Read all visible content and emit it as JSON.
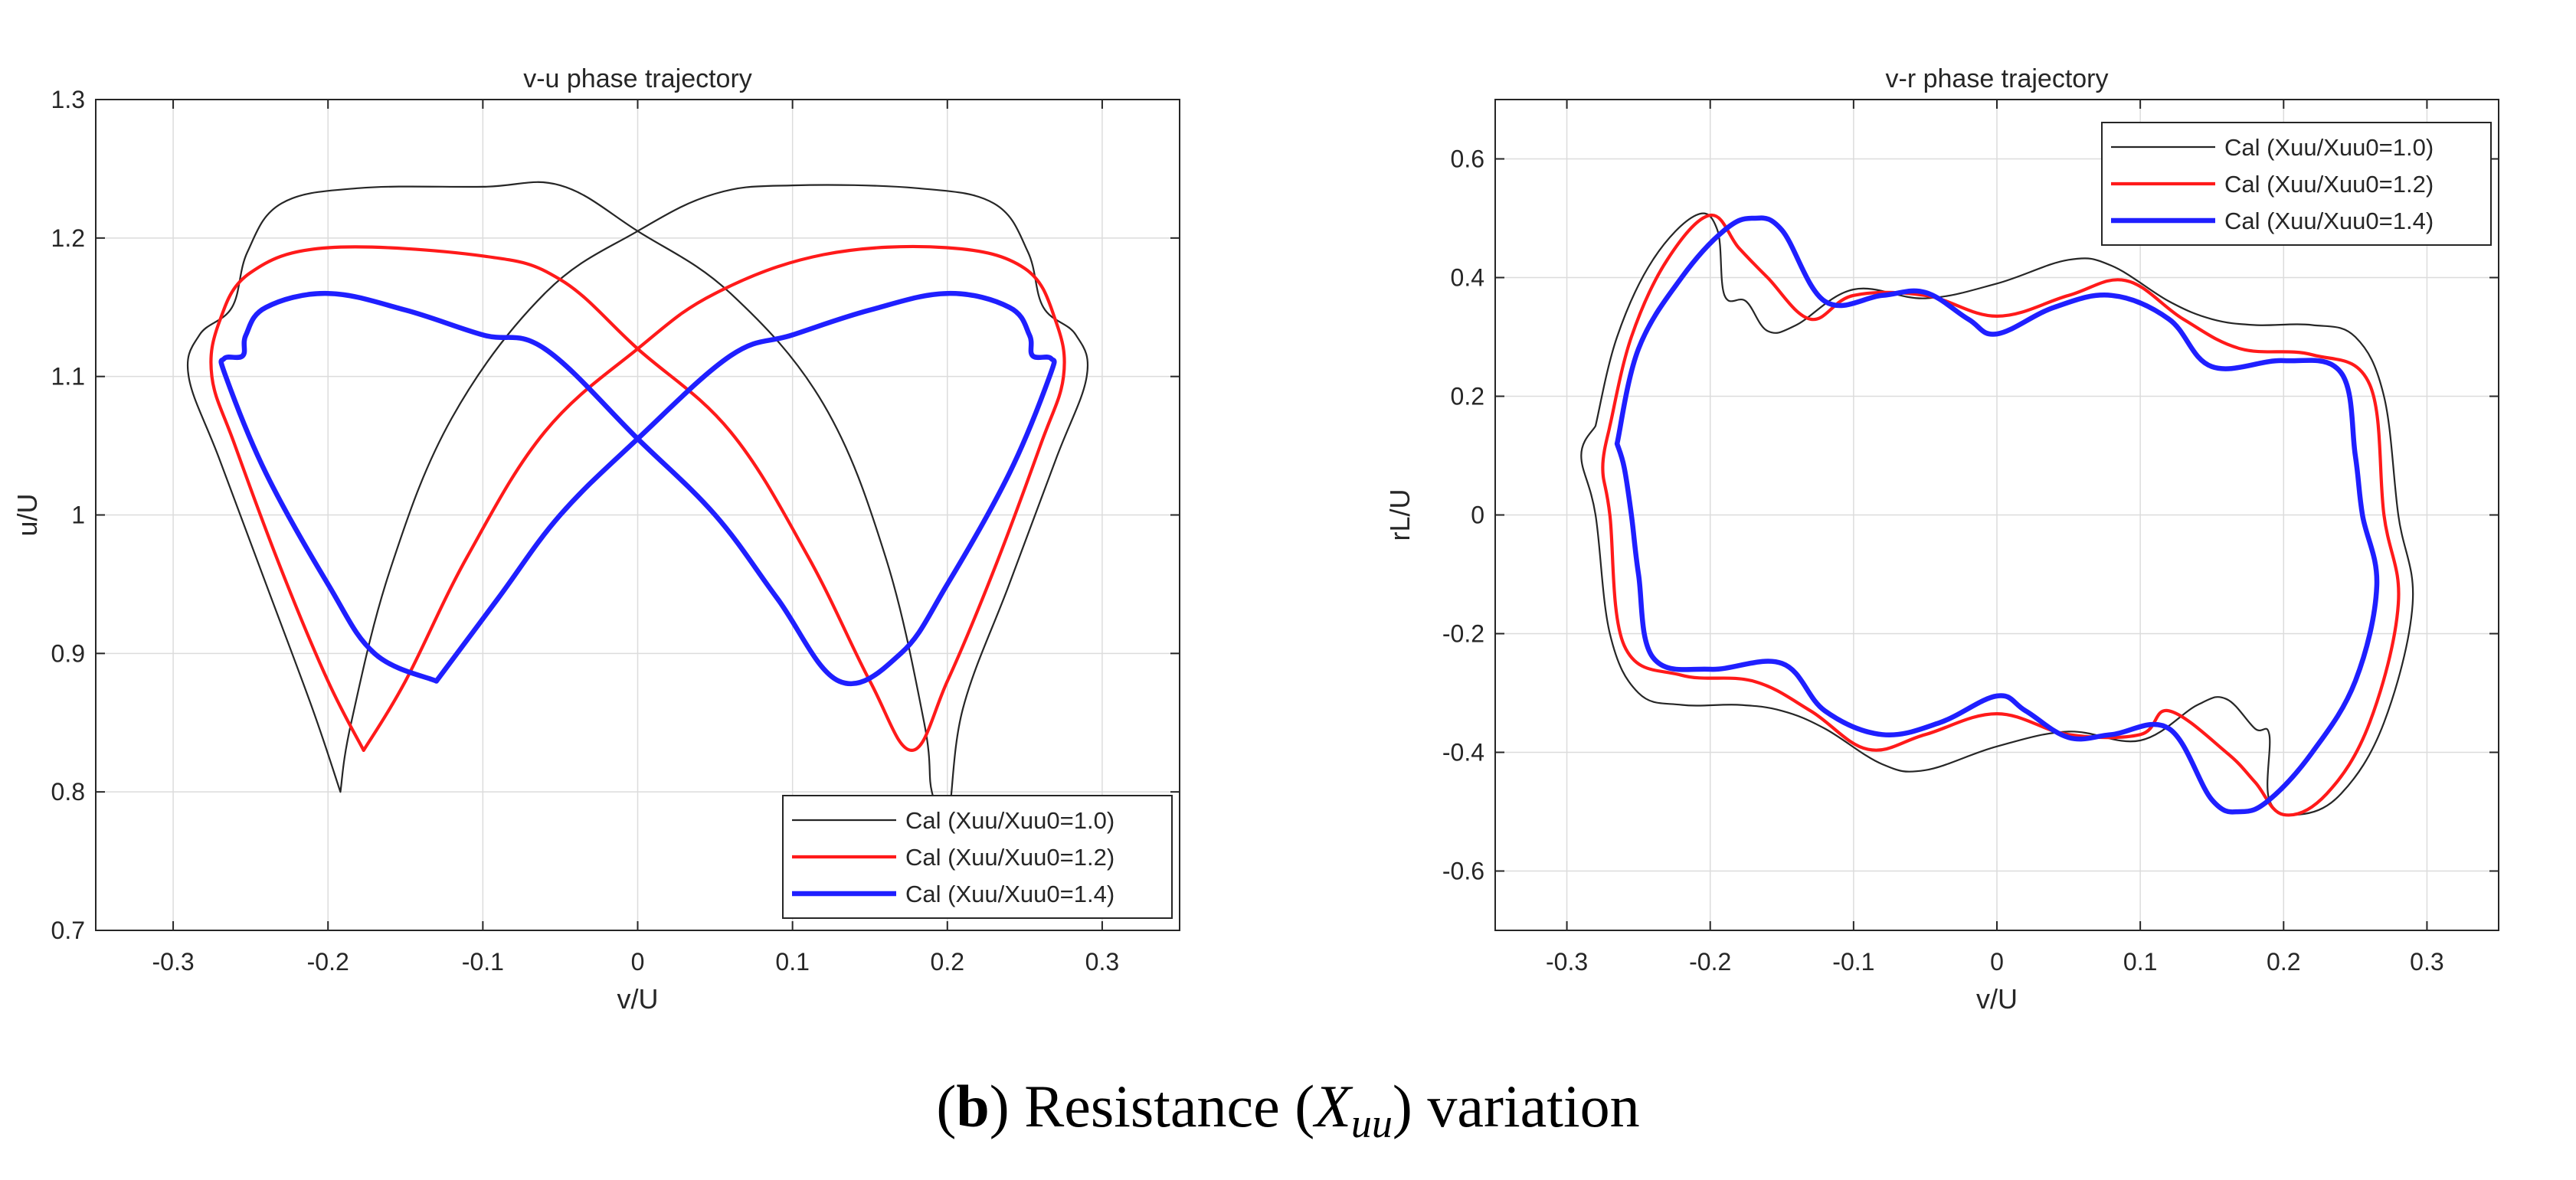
{
  "caption": {
    "label": "b",
    "text": "Resistance (X_uu) variation",
    "pre": " Resistance (",
    "var": "X",
    "sub": "uu",
    "post": ") variation"
  },
  "chart_data": [
    {
      "type": "line",
      "title": "v-u phase trajectory",
      "xlabel": "v/U",
      "ylabel": "u/U",
      "xlim": [
        -0.35,
        0.35
      ],
      "ylim": [
        0.7,
        1.3
      ],
      "xticks": [
        -0.3,
        -0.2,
        -0.1,
        0,
        0.1,
        0.2,
        0.3
      ],
      "xtick_labels": [
        "-0.3",
        "-0.2",
        "-0.1",
        "0",
        "0.1",
        "0.2",
        "0.3"
      ],
      "yticks": [
        0.7,
        0.8,
        0.9,
        1.0,
        1.1,
        1.2,
        1.3
      ],
      "ytick_labels": [
        "0.7",
        "0.8",
        "0.9",
        "1",
        "1.1",
        "1.2",
        "1.3"
      ],
      "grid": true,
      "legend_position": "bottom-right",
      "series": [
        {
          "name": "Cal (Xuu/Xuu0=1.0)",
          "color": "#262626",
          "points": [
            [
              -0.192,
              0.8
            ],
            [
              -0.21,
              0.86
            ],
            [
              -0.24,
              0.95
            ],
            [
              -0.27,
              1.04
            ],
            [
              -0.29,
              1.1
            ],
            [
              -0.283,
              1.13
            ],
            [
              -0.262,
              1.15
            ],
            [
              -0.252,
              1.19
            ],
            [
              -0.23,
              1.225
            ],
            [
              -0.18,
              1.236
            ],
            [
              -0.1,
              1.237
            ],
            [
              -0.05,
              1.238
            ],
            [
              0.0,
              1.205
            ],
            [
              0.06,
              1.16
            ],
            [
              0.12,
              1.08
            ],
            [
              0.16,
              0.97
            ],
            [
              0.185,
              0.85
            ],
            [
              0.19,
              0.8
            ],
            [
              0.2,
              0.78
            ],
            [
              0.21,
              0.86
            ],
            [
              0.24,
              0.95
            ],
            [
              0.27,
              1.04
            ],
            [
              0.29,
              1.1
            ],
            [
              0.283,
              1.13
            ],
            [
              0.262,
              1.15
            ],
            [
              0.252,
              1.19
            ],
            [
              0.23,
              1.225
            ],
            [
              0.18,
              1.236
            ],
            [
              0.1,
              1.238
            ],
            [
              0.05,
              1.232
            ],
            [
              0.0,
              1.205
            ],
            [
              -0.06,
              1.16
            ],
            [
              -0.12,
              1.07
            ],
            [
              -0.16,
              0.96
            ],
            [
              -0.185,
              0.85
            ],
            [
              -0.192,
              0.8
            ]
          ]
        },
        {
          "name": "Cal (Xuu/Xuu0=1.2)",
          "color": "#ff1a1a",
          "points": [
            [
              -0.177,
              0.83
            ],
            [
              -0.2,
              0.88
            ],
            [
              -0.23,
              0.96
            ],
            [
              -0.26,
              1.05
            ],
            [
              -0.275,
              1.1
            ],
            [
              -0.27,
              1.14
            ],
            [
              -0.25,
              1.175
            ],
            [
              -0.2,
              1.193
            ],
            [
              -0.1,
              1.187
            ],
            [
              -0.05,
              1.17
            ],
            [
              0.0,
              1.12
            ],
            [
              0.06,
              1.06
            ],
            [
              0.11,
              0.97
            ],
            [
              0.15,
              0.88
            ],
            [
              0.177,
              0.83
            ],
            [
              0.2,
              0.88
            ],
            [
              0.23,
              0.96
            ],
            [
              0.26,
              1.05
            ],
            [
              0.275,
              1.1
            ],
            [
              0.27,
              1.14
            ],
            [
              0.25,
              1.178
            ],
            [
              0.2,
              1.193
            ],
            [
              0.12,
              1.188
            ],
            [
              0.05,
              1.16
            ],
            [
              0.0,
              1.12
            ],
            [
              -0.06,
              1.06
            ],
            [
              -0.11,
              0.97
            ],
            [
              -0.15,
              0.88
            ],
            [
              -0.177,
              0.83
            ]
          ]
        },
        {
          "name": "Cal (Xuu/Xuu0=1.4)",
          "color": "#1f1fff",
          "points": [
            [
              -0.13,
              0.88
            ],
            [
              -0.17,
              0.9
            ],
            [
              -0.2,
              0.95
            ],
            [
              -0.24,
              1.03
            ],
            [
              -0.266,
              1.1
            ],
            [
              -0.267,
              1.113
            ],
            [
              -0.255,
              1.115
            ],
            [
              -0.253,
              1.13
            ],
            [
              -0.24,
              1.15
            ],
            [
              -0.2,
              1.16
            ],
            [
              -0.15,
              1.148
            ],
            [
              -0.1,
              1.13
            ],
            [
              -0.06,
              1.12
            ],
            [
              0.0,
              1.055
            ],
            [
              0.05,
              1.0
            ],
            [
              0.09,
              0.94
            ],
            [
              0.13,
              0.88
            ],
            [
              0.17,
              0.9
            ],
            [
              0.2,
              0.95
            ],
            [
              0.24,
              1.03
            ],
            [
              0.266,
              1.1
            ],
            [
              0.267,
              1.113
            ],
            [
              0.255,
              1.115
            ],
            [
              0.253,
              1.13
            ],
            [
              0.24,
              1.15
            ],
            [
              0.2,
              1.16
            ],
            [
              0.15,
              1.148
            ],
            [
              0.1,
              1.13
            ],
            [
              0.06,
              1.115
            ],
            [
              0.0,
              1.055
            ],
            [
              -0.05,
              1.0
            ],
            [
              -0.09,
              0.94
            ],
            [
              -0.13,
              0.88
            ]
          ]
        }
      ]
    },
    {
      "type": "line",
      "title": "v-r phase trajectory",
      "xlabel": "v/U",
      "ylabel": "rL/U",
      "xlim": [
        -0.35,
        0.35
      ],
      "ylim": [
        -0.7,
        0.7
      ],
      "xticks": [
        -0.3,
        -0.2,
        -0.1,
        0,
        0.1,
        0.2,
        0.3
      ],
      "xtick_labels": [
        "-0.3",
        "-0.2",
        "-0.1",
        "0",
        "0.1",
        "0.2",
        "0.3"
      ],
      "yticks": [
        -0.6,
        -0.4,
        -0.2,
        0,
        0.2,
        0.4,
        0.6
      ],
      "ytick_labels": [
        "-0.6",
        "-0.4",
        "-0.2",
        "0",
        "0.2",
        "0.4",
        "0.6"
      ],
      "grid": true,
      "legend_position": "top-right",
      "series": [
        {
          "name": "Cal (Xuu/Xuu0=1.0)",
          "color": "#262626",
          "points": [
            [
              -0.28,
              0.15
            ],
            [
              -0.265,
              0.3
            ],
            [
              -0.24,
              0.43
            ],
            [
              -0.21,
              0.505
            ],
            [
              -0.195,
              0.48
            ],
            [
              -0.19,
              0.37
            ],
            [
              -0.175,
              0.36
            ],
            [
              -0.16,
              0.31
            ],
            [
              -0.14,
              0.32
            ],
            [
              -0.1,
              0.38
            ],
            [
              -0.05,
              0.365
            ],
            [
              0.0,
              0.39
            ],
            [
              0.05,
              0.43
            ],
            [
              0.08,
              0.42
            ],
            [
              0.12,
              0.36
            ],
            [
              0.15,
              0.33
            ],
            [
              0.18,
              0.32
            ],
            [
              0.22,
              0.32
            ],
            [
              0.25,
              0.3
            ],
            [
              0.27,
              0.2
            ],
            [
              0.28,
              0.0
            ],
            [
              0.29,
              -0.15
            ],
            [
              0.27,
              -0.35
            ],
            [
              0.24,
              -0.47
            ],
            [
              0.21,
              -0.505
            ],
            [
              0.19,
              -0.48
            ],
            [
              0.19,
              -0.37
            ],
            [
              0.18,
              -0.36
            ],
            [
              0.16,
              -0.31
            ],
            [
              0.14,
              -0.32
            ],
            [
              0.1,
              -0.38
            ],
            [
              0.05,
              -0.365
            ],
            [
              0.0,
              -0.39
            ],
            [
              -0.05,
              -0.43
            ],
            [
              -0.08,
              -0.42
            ],
            [
              -0.12,
              -0.36
            ],
            [
              -0.15,
              -0.33
            ],
            [
              -0.18,
              -0.32
            ],
            [
              -0.22,
              -0.32
            ],
            [
              -0.25,
              -0.3
            ],
            [
              -0.27,
              -0.2
            ],
            [
              -0.28,
              0.0
            ],
            [
              -0.29,
              0.1
            ],
            [
              -0.28,
              0.15
            ]
          ]
        },
        {
          "name": "Cal (Xuu/Xuu0=1.2)",
          "color": "#ff1a1a",
          "points": [
            [
              -0.27,
              0.15
            ],
            [
              -0.255,
              0.3
            ],
            [
              -0.23,
              0.43
            ],
            [
              -0.2,
              0.505
            ],
            [
              -0.18,
              0.45
            ],
            [
              -0.16,
              0.4
            ],
            [
              -0.13,
              0.33
            ],
            [
              -0.1,
              0.37
            ],
            [
              -0.05,
              0.37
            ],
            [
              0.0,
              0.335
            ],
            [
              0.05,
              0.37
            ],
            [
              0.09,
              0.395
            ],
            [
              0.13,
              0.33
            ],
            [
              0.17,
              0.28
            ],
            [
              0.22,
              0.27
            ],
            [
              0.26,
              0.22
            ],
            [
              0.27,
              0.0
            ],
            [
              0.28,
              -0.15
            ],
            [
              0.26,
              -0.35
            ],
            [
              0.23,
              -0.47
            ],
            [
              0.2,
              -0.505
            ],
            [
              0.18,
              -0.45
            ],
            [
              0.16,
              -0.4
            ],
            [
              0.12,
              -0.33
            ],
            [
              0.1,
              -0.37
            ],
            [
              0.05,
              -0.37
            ],
            [
              0.0,
              -0.335
            ],
            [
              -0.05,
              -0.37
            ],
            [
              -0.09,
              -0.395
            ],
            [
              -0.13,
              -0.33
            ],
            [
              -0.17,
              -0.28
            ],
            [
              -0.22,
              -0.27
            ],
            [
              -0.26,
              -0.22
            ],
            [
              -0.27,
              0.0
            ],
            [
              -0.275,
              0.08
            ],
            [
              -0.27,
              0.15
            ]
          ]
        },
        {
          "name": "Cal (Xuu/Xuu0=1.4)",
          "color": "#1f1fff",
          "points": [
            [
              -0.265,
              0.12
            ],
            [
              -0.25,
              0.28
            ],
            [
              -0.22,
              0.4
            ],
            [
              -0.19,
              0.48
            ],
            [
              -0.17,
              0.5
            ],
            [
              -0.15,
              0.48
            ],
            [
              -0.12,
              0.36
            ],
            [
              -0.08,
              0.37
            ],
            [
              -0.05,
              0.375
            ],
            [
              -0.02,
              0.33
            ],
            [
              0.0,
              0.305
            ],
            [
              0.04,
              0.35
            ],
            [
              0.08,
              0.37
            ],
            [
              0.12,
              0.33
            ],
            [
              0.15,
              0.25
            ],
            [
              0.2,
              0.26
            ],
            [
              0.24,
              0.24
            ],
            [
              0.25,
              0.1
            ],
            [
              0.255,
              0.0
            ],
            [
              0.265,
              -0.12
            ],
            [
              0.25,
              -0.28
            ],
            [
              0.22,
              -0.4
            ],
            [
              0.19,
              -0.48
            ],
            [
              0.17,
              -0.5
            ],
            [
              0.15,
              -0.48
            ],
            [
              0.12,
              -0.36
            ],
            [
              0.08,
              -0.37
            ],
            [
              0.05,
              -0.375
            ],
            [
              0.02,
              -0.33
            ],
            [
              0.0,
              -0.305
            ],
            [
              -0.04,
              -0.35
            ],
            [
              -0.08,
              -0.37
            ],
            [
              -0.12,
              -0.33
            ],
            [
              -0.15,
              -0.25
            ],
            [
              -0.2,
              -0.26
            ],
            [
              -0.24,
              -0.24
            ],
            [
              -0.25,
              -0.1
            ],
            [
              -0.255,
              0.0
            ],
            [
              -0.26,
              0.08
            ],
            [
              -0.265,
              0.12
            ]
          ]
        }
      ]
    }
  ]
}
